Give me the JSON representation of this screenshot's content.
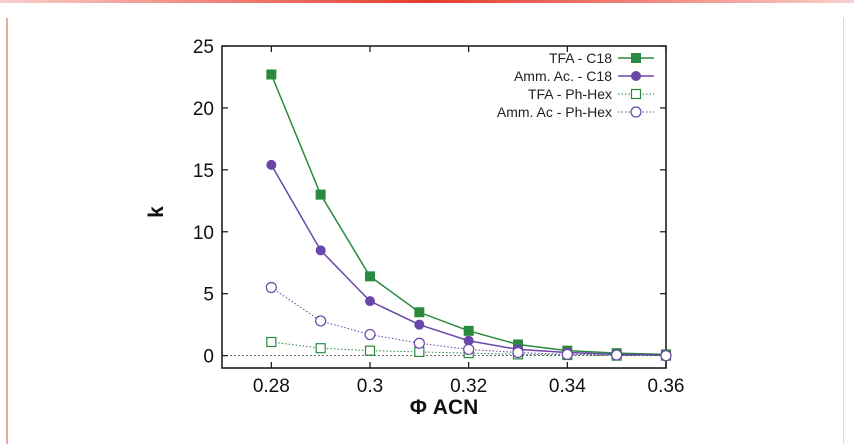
{
  "chart_data": {
    "type": "line",
    "title": "",
    "xlabel": "Φ ACN",
    "ylabel": "k",
    "xlim": [
      0.27,
      0.36
    ],
    "ylim": [
      -1,
      25
    ],
    "xticks": [
      0.28,
      0.3,
      0.32,
      0.34,
      0.36
    ],
    "xtick_labels": [
      "0.28",
      "0.3",
      "0.32",
      "0.34",
      "0.36"
    ],
    "yticks": [
      0,
      5,
      10,
      15,
      20,
      25
    ],
    "ytick_labels": [
      "0",
      "5",
      "10",
      "15",
      "20",
      "25"
    ],
    "grid": false,
    "legend_position": "top-right",
    "zero_line": true,
    "x": [
      0.28,
      0.29,
      0.3,
      0.31,
      0.32,
      0.33,
      0.34,
      0.35,
      0.36
    ],
    "series": [
      {
        "name": "TFA - C18",
        "color": "#2a8a3e",
        "marker": "filled-square",
        "line": "solid",
        "values": [
          22.7,
          13.0,
          6.4,
          3.5,
          2.0,
          0.9,
          0.4,
          0.2,
          0.1
        ]
      },
      {
        "name": "Amm. Ac. - C18",
        "color": "#6a46a8",
        "marker": "filled-circle",
        "line": "solid",
        "values": [
          15.4,
          8.5,
          4.4,
          2.5,
          1.2,
          0.5,
          0.25,
          0.1,
          0.05
        ]
      },
      {
        "name": "TFA - Ph-Hex",
        "color": "#2a8a3e",
        "marker": "open-square",
        "line": "dotted",
        "values": [
          1.1,
          0.6,
          0.4,
          0.3,
          0.2,
          0.1,
          0.05,
          0.0,
          0.0
        ]
      },
      {
        "name": "Amm. Ac - Ph-Hex",
        "color": "#6a46a8",
        "marker": "open-circle",
        "line": "dotted",
        "values": [
          5.5,
          2.8,
          1.7,
          1.0,
          0.5,
          0.25,
          0.1,
          0.05,
          0.0
        ]
      }
    ]
  }
}
